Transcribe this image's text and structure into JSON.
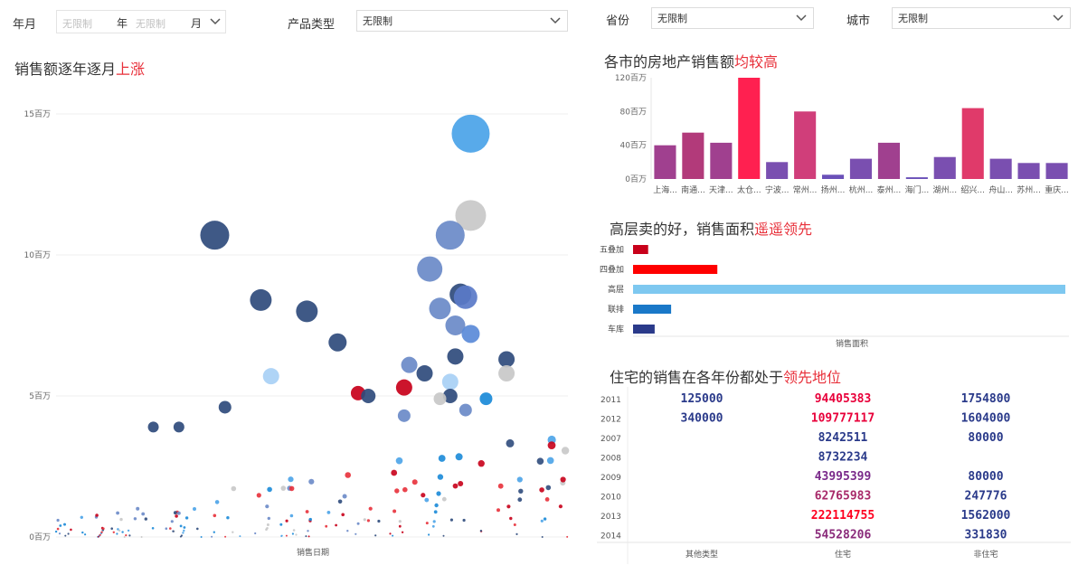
{
  "filters": {
    "yearmonth_label": "年月",
    "year_placeholder": "无限制",
    "year_unit": "年",
    "month_placeholder": "无限制",
    "month_unit": "月",
    "product_type_label": "产品类型",
    "product_type_value": "无限制",
    "province_label": "省份",
    "province_value": "无限制",
    "city_label": "城市",
    "city_value": "无限制"
  },
  "titles": {
    "scatter_prefix": "销售额逐年逐月",
    "scatter_highlight": "上涨",
    "bar_prefix": "各市的房地产销售额",
    "bar_highlight": "均较高",
    "hbar_prefix": "高层卖的好，销售面积",
    "hbar_highlight": "遥遥领先",
    "table_prefix": "住宅的销售在各年份都处于",
    "table_highlight": "领先地位"
  },
  "colors": {
    "accent_red": "#e8303a",
    "navy": "#2f4b7c",
    "blue": "#4a90d9",
    "light_blue": "#7ec8f0",
    "purple": "#9b4a9f",
    "pink_red": "#ff2050"
  },
  "chart_data": [
    {
      "type": "scatter",
      "xlabel": "销售日期",
      "ylabel": "",
      "ylim": [
        0,
        15
      ],
      "yticks": [
        "0百万",
        "5百万",
        "10百万",
        "15百万"
      ],
      "big_points": [
        {
          "x": 0.31,
          "y": 10.7,
          "size": 16,
          "color": "#2f4b7c"
        },
        {
          "x": 0.4,
          "y": 8.4,
          "size": 12,
          "color": "#2f4b7c"
        },
        {
          "x": 0.49,
          "y": 8.0,
          "size": 12,
          "color": "#2f4b7c"
        },
        {
          "x": 0.55,
          "y": 6.9,
          "size": 10,
          "color": "#2f4b7c"
        },
        {
          "x": 0.42,
          "y": 5.7,
          "size": 9,
          "color": "#a8d0f5"
        },
        {
          "x": 0.81,
          "y": 14.3,
          "size": 21,
          "color": "#4aa3e8"
        },
        {
          "x": 0.81,
          "y": 11.4,
          "size": 17,
          "color": "#c8c8c8"
        },
        {
          "x": 0.77,
          "y": 10.7,
          "size": 16,
          "color": "#6a8ac8"
        },
        {
          "x": 0.73,
          "y": 9.5,
          "size": 14,
          "color": "#6a8ac8"
        },
        {
          "x": 0.79,
          "y": 8.6,
          "size": 12,
          "color": "#2f4b7c"
        },
        {
          "x": 0.8,
          "y": 8.5,
          "size": 13,
          "color": "#5a7ac8"
        },
        {
          "x": 0.75,
          "y": 8.1,
          "size": 12,
          "color": "#6a8ac8"
        },
        {
          "x": 0.78,
          "y": 7.5,
          "size": 11,
          "color": "#6a8ac8"
        },
        {
          "x": 0.81,
          "y": 7.2,
          "size": 10,
          "color": "#5a8ad8"
        },
        {
          "x": 0.88,
          "y": 6.3,
          "size": 9,
          "color": "#2f4b7c"
        },
        {
          "x": 0.88,
          "y": 5.8,
          "size": 9,
          "color": "#c8c8c8"
        },
        {
          "x": 0.78,
          "y": 6.4,
          "size": 9,
          "color": "#2f4b7c"
        },
        {
          "x": 0.69,
          "y": 6.1,
          "size": 9,
          "color": "#6a8ac8"
        },
        {
          "x": 0.72,
          "y": 5.8,
          "size": 9,
          "color": "#2f4b7c"
        },
        {
          "x": 0.77,
          "y": 5.5,
          "size": 9,
          "color": "#a8d0f5"
        },
        {
          "x": 0.68,
          "y": 5.3,
          "size": 9,
          "color": "#c8001a"
        },
        {
          "x": 0.59,
          "y": 5.1,
          "size": 8,
          "color": "#c8001a"
        },
        {
          "x": 0.61,
          "y": 5.0,
          "size": 8,
          "color": "#2f4b7c"
        },
        {
          "x": 0.77,
          "y": 5.0,
          "size": 8,
          "color": "#2f4b7c"
        },
        {
          "x": 0.75,
          "y": 4.9,
          "size": 7,
          "color": "#c8c8c8"
        },
        {
          "x": 0.84,
          "y": 4.9,
          "size": 7,
          "color": "#1a8ad8"
        },
        {
          "x": 0.33,
          "y": 4.6,
          "size": 7,
          "color": "#2f4b7c"
        },
        {
          "x": 0.8,
          "y": 4.5,
          "size": 7,
          "color": "#6a8ac8"
        },
        {
          "x": 0.68,
          "y": 4.3,
          "size": 7,
          "color": "#6a8ac8"
        },
        {
          "x": 0.19,
          "y": 3.9,
          "size": 6,
          "color": "#2f4b7c"
        },
        {
          "x": 0.24,
          "y": 3.9,
          "size": 6,
          "color": "#2f4b7c"
        }
      ]
    },
    {
      "type": "bar",
      "yticks": [
        "0百万",
        "40百万",
        "80百万",
        "120百万"
      ],
      "ylim": [
        0,
        120
      ],
      "categories": [
        "上海...",
        "南通...",
        "天津...",
        "太仓...",
        "宁波...",
        "常州...",
        "扬州...",
        "杭州...",
        "泰州...",
        "海门...",
        "湖州...",
        "绍兴...",
        "舟山...",
        "苏州...",
        "重庆..."
      ],
      "values": [
        40,
        55,
        43,
        120,
        20,
        80,
        5,
        24,
        43,
        2,
        26,
        84,
        24,
        19,
        19
      ],
      "colors": [
        "#a0408f",
        "#b23a7a",
        "#a0408f",
        "#ff2050",
        "#7a4fb0",
        "#d03e7a",
        "#6a50b8",
        "#7a4fb0",
        "#a0408f",
        "#6a50b8",
        "#7a4fb0",
        "#e03a6a",
        "#7a4fb0",
        "#7a4fb0",
        "#7a4fb0"
      ]
    },
    {
      "type": "bar",
      "orientation": "horizontal",
      "xlabel": "销售面积",
      "categories": [
        "五叠加",
        "四叠加",
        "高层",
        "联排",
        "车库"
      ],
      "values": [
        3.5,
        19.5,
        100,
        8.8,
        5.0
      ],
      "colors": [
        "#c8001a",
        "#ff0000",
        "#7ec8f0",
        "#1a78c8",
        "#2a3a8a"
      ]
    },
    {
      "type": "table",
      "columns": [
        "其他类型",
        "住宅",
        "非住宅"
      ],
      "rows": [
        {
          "year": "2011",
          "other": "125000",
          "res": "94405383",
          "nonres": "1754800",
          "res_color": "#e8003a",
          "nonres_color": "#2a3a8a"
        },
        {
          "year": "2012",
          "other": "340000",
          "res": "109777117",
          "nonres": "1604000",
          "res_color": "#e8003a",
          "nonres_color": "#2a3a8a"
        },
        {
          "year": "2007",
          "other": "",
          "res": "8242511",
          "nonres": "80000",
          "res_color": "#2a3a8a",
          "nonres_color": "#2a3a8a"
        },
        {
          "year": "2008",
          "other": "",
          "res": "8732234",
          "nonres": "",
          "res_color": "#2a3a8a",
          "nonres_color": "#2a3a8a"
        },
        {
          "year": "2009",
          "other": "",
          "res": "43995399",
          "nonres": "80000",
          "res_color": "#7a2a8a",
          "nonres_color": "#2a3a8a"
        },
        {
          "year": "2010",
          "other": "",
          "res": "62765983",
          "nonres": "247776",
          "res_color": "#a82a6a",
          "nonres_color": "#2a3a8a"
        },
        {
          "year": "2013",
          "other": "",
          "res": "222114755",
          "nonres": "1562000",
          "res_color": "#ff0020",
          "nonres_color": "#2a3a8a"
        },
        {
          "year": "2014",
          "other": "",
          "res": "54528206",
          "nonres": "331830",
          "res_color": "#8a2a7a",
          "nonres_color": "#2a3a8a"
        }
      ]
    }
  ]
}
